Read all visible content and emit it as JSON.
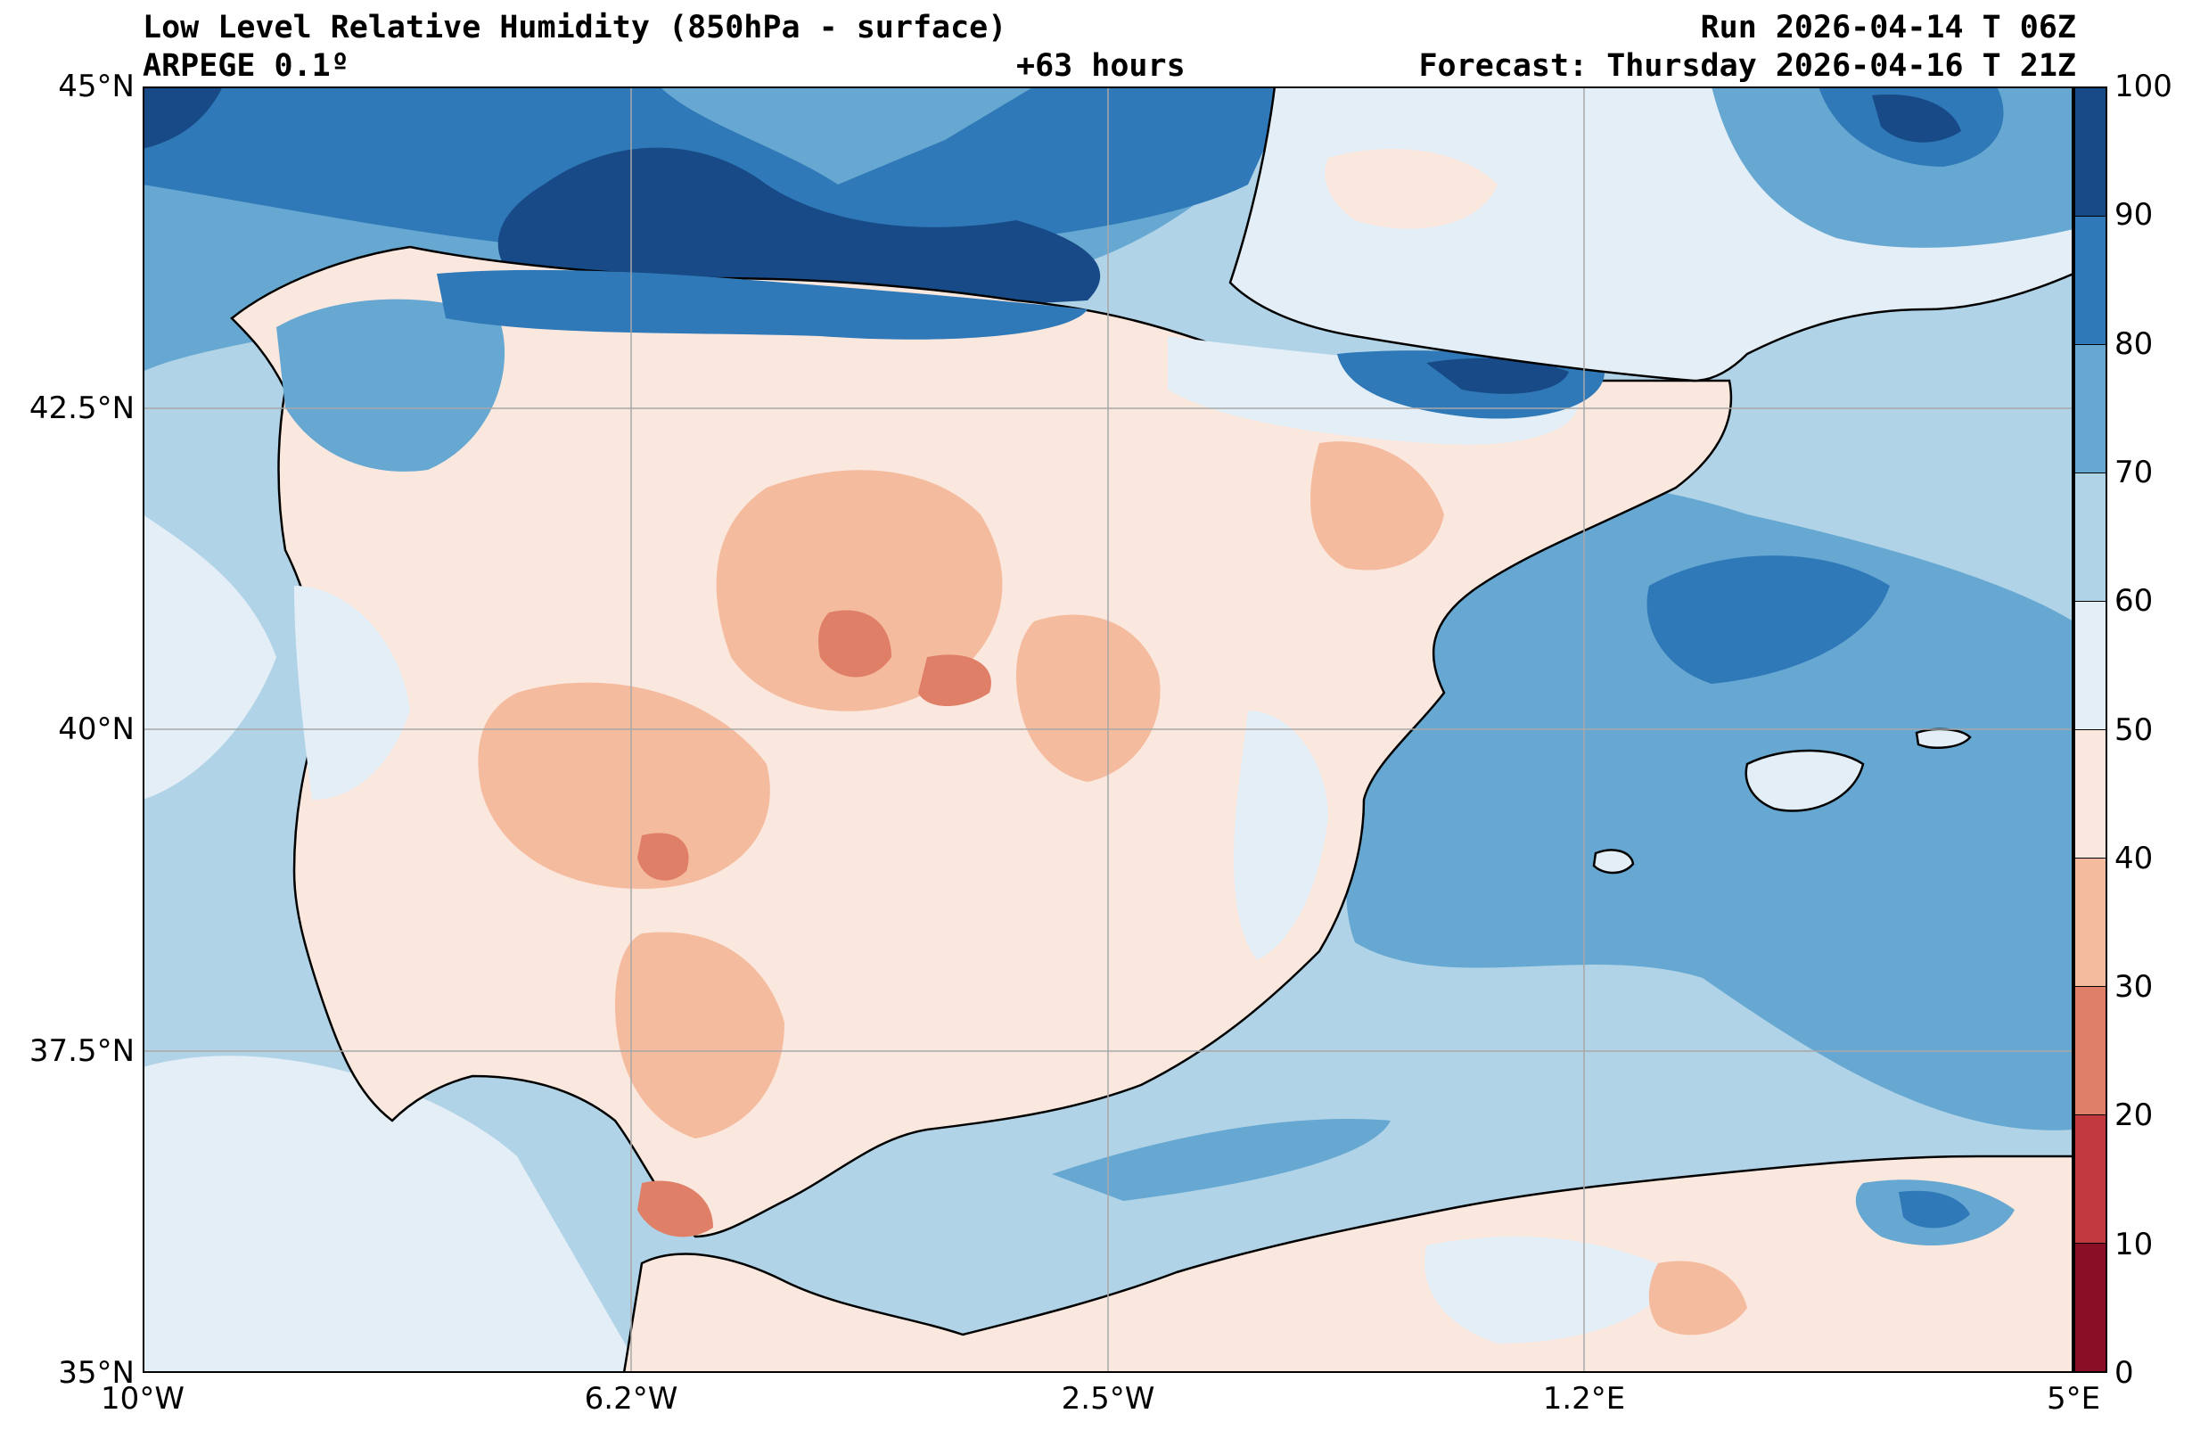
{
  "header": {
    "title": "Low Level Relative Humidity (850hPa - surface)",
    "model": "ARPEGE 0.1º",
    "lead_time": "+63 hours",
    "run": "Run 2026-04-14 T 06Z",
    "forecast": "Forecast: Thursday 2026-04-16 T 21Z"
  },
  "axes": {
    "lat_labels": [
      "45°N",
      "42.5°N",
      "40°N",
      "37.5°N",
      "35°N"
    ],
    "lon_labels": [
      "10°W",
      "6.2°W",
      "2.5°W",
      "1.2°E",
      "5°E"
    ]
  },
  "colorbar": {
    "ticks": [
      "100",
      "90",
      "80",
      "70",
      "60",
      "50",
      "40",
      "30",
      "20",
      "10",
      "0"
    ],
    "colors_top_to_bottom": [
      "#174a86",
      "#2f79b8",
      "#66a8d1",
      "#b0d3e7",
      "#e4eef6",
      "#fae8df",
      "#f5bb9e",
      "#e07f68",
      "#c13a3f",
      "#8a0e25"
    ]
  },
  "field_colors": {
    "land_base": "#fae8df",
    "sea_base": "#b0d3e7",
    "dry": "#f5bb9e",
    "very_dry": "#e07f68",
    "moist": "#e4eef6",
    "wet": "#66a8d1",
    "very_wet": "#2f79b8",
    "saturated": "#174a86"
  }
}
